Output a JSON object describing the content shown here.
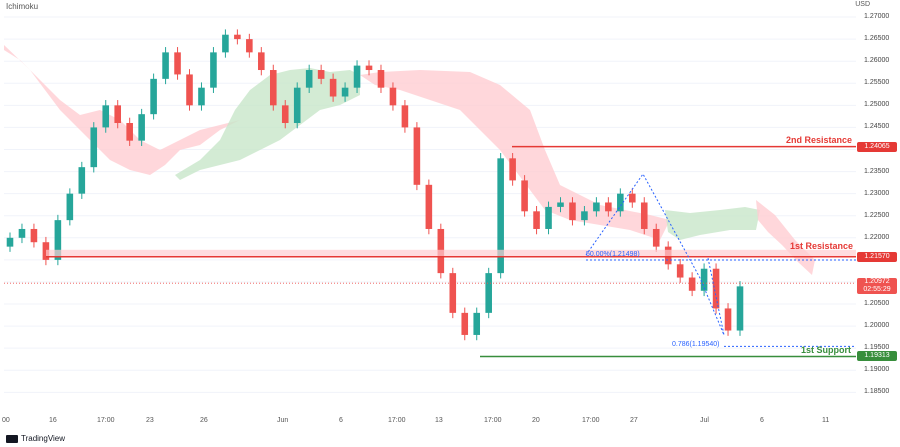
{
  "header": {
    "indicator": "Ichimoku",
    "currency": "USD"
  },
  "colors": {
    "up": "#26a69a",
    "down": "#ef5350",
    "cloud_bull": "#c8e6c9",
    "cloud_bear": "#ffcdd2",
    "resistance": "#e53935",
    "support": "#388e3c",
    "fib": "#2962ff",
    "current": "#ef5350",
    "grid": "#f0f3fa"
  },
  "price_axis": {
    "ticks": [
      "1.27000",
      "1.26500",
      "1.26000",
      "1.25500",
      "1.25000",
      "1.24500",
      "1.24000",
      "1.23500",
      "1.23000",
      "1.22500",
      "1.22000",
      "1.21500",
      "1.21000",
      "1.20500",
      "1.20000",
      "1.19500",
      "1.19000",
      "1.18500"
    ],
    "min": 1.181,
    "max": 1.2725
  },
  "time_axis": {
    "ticks": [
      "00",
      "16",
      "17:00",
      "23",
      "26",
      "Jun",
      "6",
      "17:00",
      "13",
      "17:00",
      "20",
      "17:00",
      "27",
      "Jul",
      "6",
      "11"
    ]
  },
  "levels": {
    "resistance2": {
      "label": "2nd Resistance",
      "price": 1.24065,
      "tag": "1.24065"
    },
    "resistance1": {
      "label": "1st Resistance",
      "price": 1.2157,
      "tag": "1.21570"
    },
    "support1": {
      "label": "1st Support",
      "price": 1.19313,
      "tag": "1.19313"
    }
  },
  "current": {
    "price": 1.20972,
    "tag": "1.20972",
    "countdown": "02:55:29"
  },
  "fib": {
    "upper_label": "50.00%(1.21498)",
    "upper_price": 1.21498,
    "lower_label": "0.786(1.19540)",
    "lower_price": 1.1954
  },
  "footer": {
    "brand": "TradingView"
  },
  "chart_data": {
    "type": "candlestick",
    "symbol_currency": "USD",
    "ylim": [
      1.181,
      1.2725
    ],
    "close_series": [
      1.22,
      1.222,
      1.219,
      1.215,
      1.224,
      1.23,
      1.236,
      1.245,
      1.25,
      1.246,
      1.242,
      1.248,
      1.256,
      1.262,
      1.257,
      1.25,
      1.254,
      1.262,
      1.266,
      1.265,
      1.262,
      1.258,
      1.25,
      1.246,
      1.254,
      1.258,
      1.256,
      1.252,
      1.254,
      1.259,
      1.258,
      1.254,
      1.25,
      1.245,
      1.232,
      1.222,
      1.212,
      1.203,
      1.198,
      1.203,
      1.212,
      1.238,
      1.233,
      1.226,
      1.222,
      1.227,
      1.228,
      1.224,
      1.226,
      1.228,
      1.226,
      1.23,
      1.228,
      1.222,
      1.218,
      1.214,
      1.211,
      1.208,
      1.213,
      1.204,
      1.199,
      1.209
    ]
  }
}
